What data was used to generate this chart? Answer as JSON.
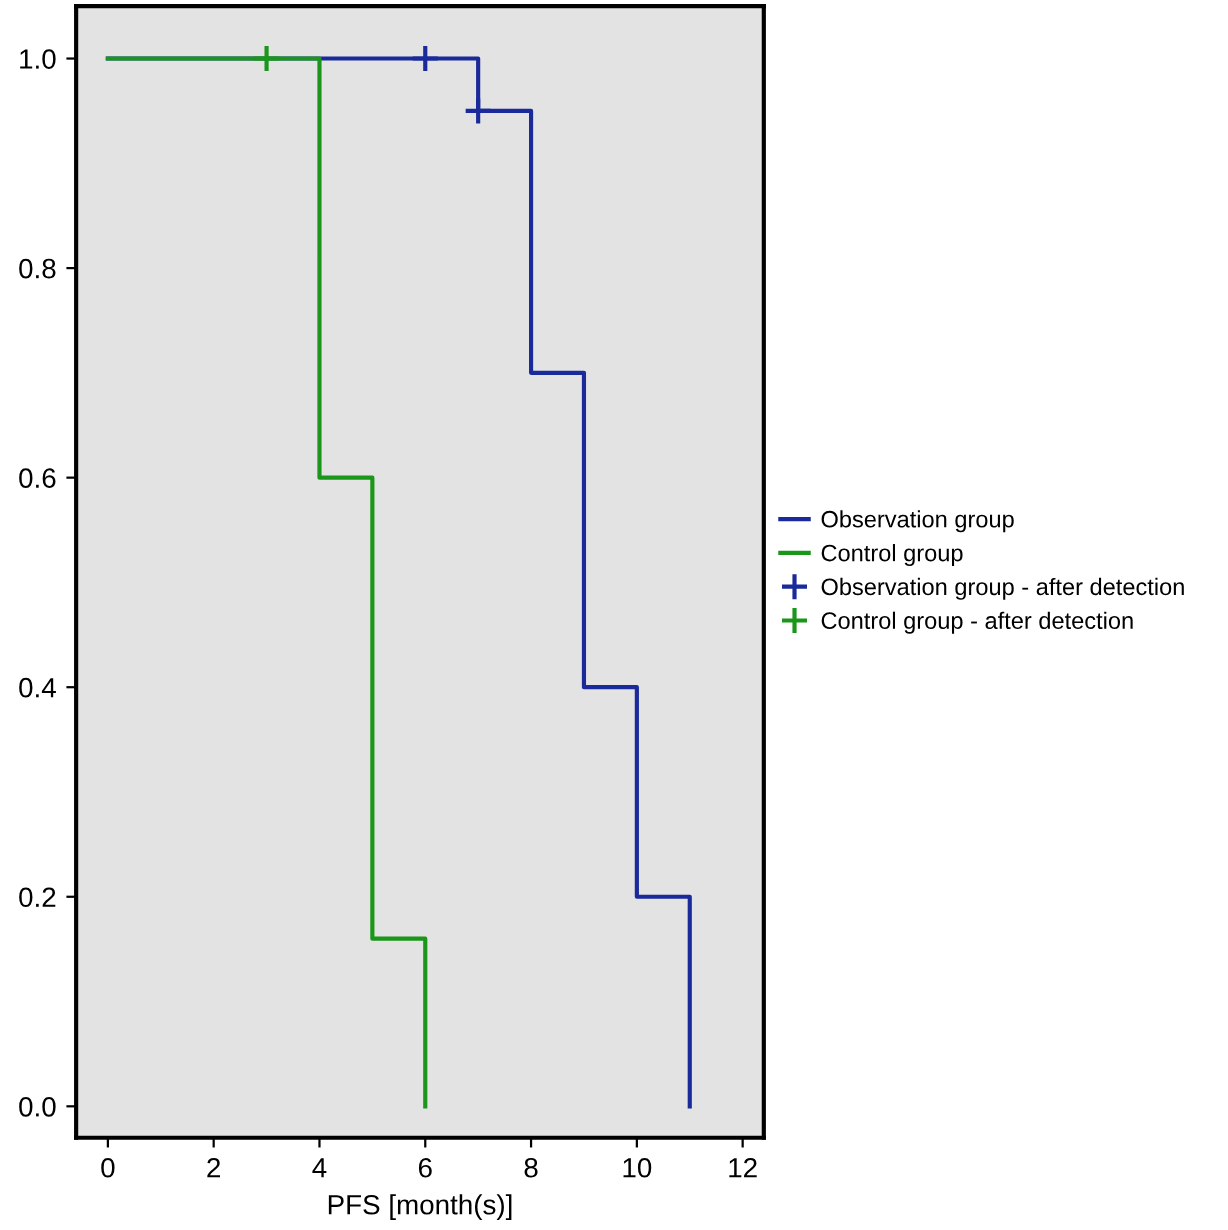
{
  "chart_data": {
    "type": "step",
    "xlabel": "PFS [month(s)]",
    "xlim": [
      -0.6,
      12.4
    ],
    "xticks": [
      0,
      2,
      4,
      6,
      8,
      10,
      12
    ],
    "ylim": [
      -0.03,
      1.05
    ],
    "yticks": [
      {
        "value": 0,
        "label": "0.0"
      },
      {
        "value": 0.2,
        "label": "0.2"
      },
      {
        "value": 0.4,
        "label": "0.4"
      },
      {
        "value": 0.6,
        "label": "0.6"
      },
      {
        "value": 0.8,
        "label": "0.8"
      },
      {
        "value": 1,
        "label": "1.0"
      }
    ],
    "grid": false,
    "legend": "right",
    "series": [
      {
        "name": "Observation group",
        "color": "#1a2a9a",
        "x": [
          0,
          7,
          8,
          9,
          10,
          11
        ],
        "values": [
          1.0,
          0.95,
          0.7,
          0.4,
          0.2,
          0.0
        ]
      },
      {
        "name": "Control group",
        "color": "#1a961a",
        "x": [
          0,
          4,
          5,
          6
        ],
        "values": [
          1.0,
          0.6,
          0.16,
          0.0
        ]
      },
      {
        "name": "Observation group - after detection",
        "type": "scatter",
        "marker": "cross",
        "color": "#1a2a9a",
        "x": [
          6,
          7
        ],
        "values": [
          1.0,
          0.95
        ]
      },
      {
        "name": "Control group - after detection",
        "type": "scatter",
        "marker": "cross",
        "color": "#1a961a",
        "x": [
          3
        ],
        "values": [
          1.0
        ]
      }
    ]
  }
}
